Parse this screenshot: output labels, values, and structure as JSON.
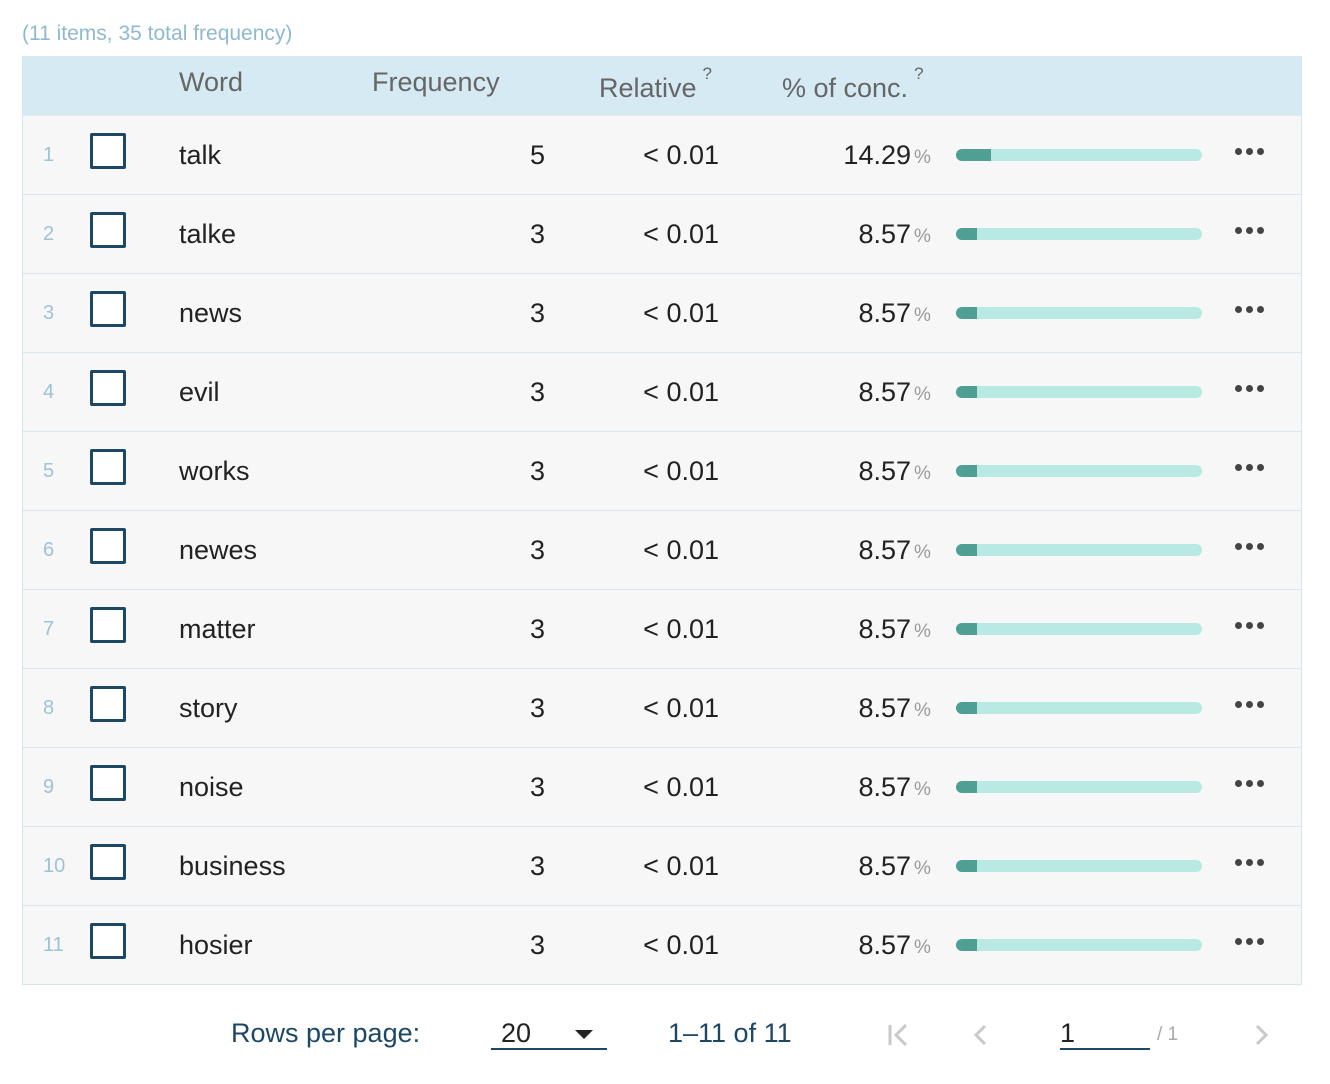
{
  "summary": "(11 items, 35 total frequency)",
  "columns": {
    "word": "Word",
    "frequency": "Frequency",
    "relative": "Relative",
    "relative_help": "?",
    "conc": "% of conc.",
    "conc_help": "?"
  },
  "rows": [
    {
      "num": "1",
      "word": "talk",
      "frequency": "5",
      "relative": "< 0.01",
      "pct": "14.29",
      "pct_sign": "%",
      "share": 0.1429
    },
    {
      "num": "2",
      "word": "talke",
      "frequency": "3",
      "relative": "< 0.01",
      "pct": "8.57",
      "pct_sign": "%",
      "share": 0.0857
    },
    {
      "num": "3",
      "word": "news",
      "frequency": "3",
      "relative": "< 0.01",
      "pct": "8.57",
      "pct_sign": "%",
      "share": 0.0857
    },
    {
      "num": "4",
      "word": "evil",
      "frequency": "3",
      "relative": "< 0.01",
      "pct": "8.57",
      "pct_sign": "%",
      "share": 0.0857
    },
    {
      "num": "5",
      "word": "works",
      "frequency": "3",
      "relative": "< 0.01",
      "pct": "8.57",
      "pct_sign": "%",
      "share": 0.0857
    },
    {
      "num": "6",
      "word": "newes",
      "frequency": "3",
      "relative": "< 0.01",
      "pct": "8.57",
      "pct_sign": "%",
      "share": 0.0857
    },
    {
      "num": "7",
      "word": "matter",
      "frequency": "3",
      "relative": "< 0.01",
      "pct": "8.57",
      "pct_sign": "%",
      "share": 0.0857
    },
    {
      "num": "8",
      "word": "story",
      "frequency": "3",
      "relative": "< 0.01",
      "pct": "8.57",
      "pct_sign": "%",
      "share": 0.0857
    },
    {
      "num": "9",
      "word": "noise",
      "frequency": "3",
      "relative": "< 0.01",
      "pct": "8.57",
      "pct_sign": "%",
      "share": 0.0857
    },
    {
      "num": "10",
      "word": "business",
      "frequency": "3",
      "relative": "< 0.01",
      "pct": "8.57",
      "pct_sign": "%",
      "share": 0.0857
    },
    {
      "num": "11",
      "word": "hosier",
      "frequency": "3",
      "relative": "< 0.01",
      "pct": "8.57",
      "pct_sign": "%",
      "share": 0.0857
    }
  ],
  "pagination": {
    "rows_per_page_label": "Rows per page:",
    "rows_per_page_value": "20",
    "range": "1–11 of 11",
    "page_value": "1",
    "page_total": "/ 1"
  },
  "colors": {
    "accent": "#1c4866",
    "header_bg": "#d5eaf2",
    "bar_track": "#b8e9e3",
    "bar_fill": "#4f9f95"
  },
  "icons": {
    "first_page": "first-page-icon",
    "prev_page": "chevron-left-icon",
    "next_page": "chevron-right-icon",
    "row_menu": "more-horizontal-icon",
    "dropdown": "caret-down-icon"
  }
}
